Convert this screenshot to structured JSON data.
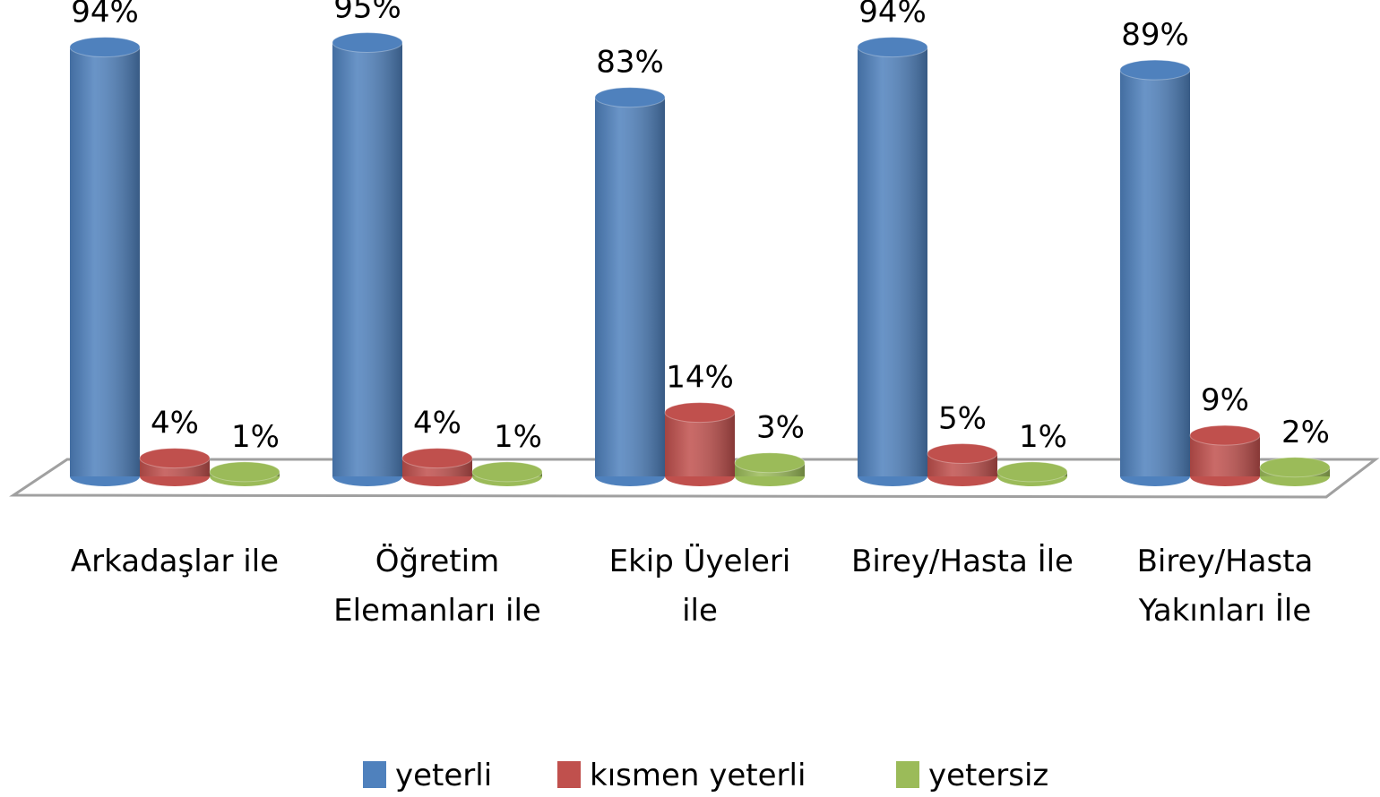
{
  "chart_data": {
    "type": "bar3d",
    "categories": [
      "Arkadaşlar ile",
      "Öğretim Elemanları ile",
      "Ekip Üyeleri ile",
      "Birey/Hasta İle",
      "Birey/Hasta Yakınları İle"
    ],
    "series": [
      {
        "name": "yeterli",
        "color": "#4f81bd",
        "values": [
          94,
          95,
          83,
          94,
          89
        ],
        "value_labels": [
          "94%",
          "95%",
          "83%",
          "94%",
          "89%"
        ]
      },
      {
        "name": "kısmen yeterli",
        "color": "#c0504d",
        "values": [
          4,
          4,
          14,
          5,
          9
        ],
        "value_labels": [
          "4%",
          "4%",
          "14%",
          "5%",
          "9%"
        ]
      },
      {
        "name": "yetersiz",
        "color": "#9bbb59",
        "values": [
          1,
          1,
          3,
          1,
          2
        ],
        "value_labels": [
          "1%",
          "1%",
          "3%",
          "1%",
          "2%"
        ]
      }
    ],
    "legend": "bottom"
  }
}
